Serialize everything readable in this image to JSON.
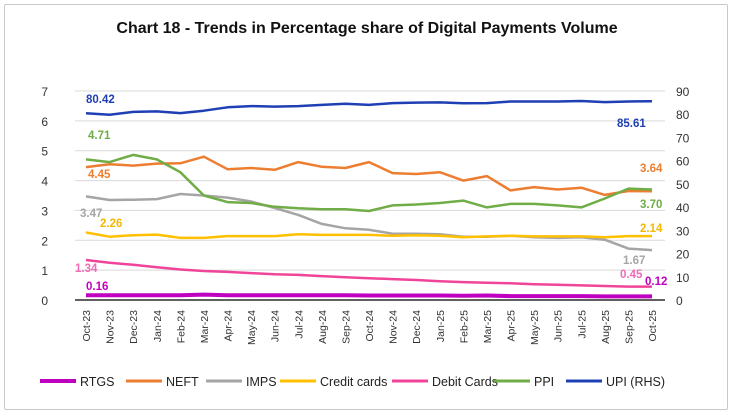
{
  "chart_data": {
    "type": "line",
    "title": "Chart 18 - Trends in Percentage share of Digital Payments Volume",
    "categories": [
      "Oct-23",
      "Nov-23",
      "Dec-23",
      "Jan-24",
      "Feb-24",
      "Mar-24",
      "Apr-24",
      "May-24",
      "Jun-24",
      "Jul-24",
      "Aug-24",
      "Sep-24",
      "Oct-24",
      "Nov-24",
      "Dec-24",
      "Jan-25",
      "Feb-25",
      "Mar-25",
      "Apr-25",
      "May-25",
      "Jun-25",
      "Jul-25",
      "Aug-25",
      "Sep-25",
      "Oct-25"
    ],
    "ylim": [
      0,
      7
    ],
    "yticks": [
      "0",
      "1",
      "2",
      "3",
      "4",
      "5",
      "6",
      "7"
    ],
    "y2lim": [
      0,
      90
    ],
    "y2ticks": [
      "0",
      "10",
      "20",
      "30",
      "40",
      "50",
      "60",
      "70",
      "80",
      "90"
    ],
    "grid": true,
    "legend": "bottom",
    "series": [
      {
        "name": "RTGS",
        "color": "#c000c0",
        "axis": "left",
        "values": [
          0.16,
          0.16,
          0.16,
          0.16,
          0.16,
          0.18,
          0.16,
          0.16,
          0.16,
          0.16,
          0.16,
          0.16,
          0.15,
          0.15,
          0.15,
          0.15,
          0.14,
          0.15,
          0.13,
          0.13,
          0.13,
          0.13,
          0.12,
          0.12,
          0.12
        ],
        "first_label": "0.16",
        "last_label": "0.12"
      },
      {
        "name": "NEFT",
        "color": "#ed7d31",
        "axis": "left",
        "values": [
          4.45,
          4.55,
          4.5,
          4.57,
          4.58,
          4.8,
          4.38,
          4.42,
          4.36,
          4.62,
          4.46,
          4.42,
          4.62,
          4.25,
          4.22,
          4.28,
          4.0,
          4.15,
          3.67,
          3.78,
          3.7,
          3.76,
          3.52,
          3.65,
          3.64
        ],
        "first_label": "4.45",
        "last_label": "3.64"
      },
      {
        "name": "IMPS",
        "color": "#a5a5a5",
        "axis": "left",
        "values": [
          3.47,
          3.35,
          3.36,
          3.38,
          3.55,
          3.5,
          3.43,
          3.3,
          3.08,
          2.85,
          2.55,
          2.4,
          2.35,
          2.22,
          2.22,
          2.2,
          2.12,
          2.12,
          2.15,
          2.1,
          2.08,
          2.1,
          2.02,
          1.72,
          1.67
        ],
        "first_label": "3.47",
        "last_label": "1.67"
      },
      {
        "name": "Credit cards",
        "color": "#ffc000",
        "axis": "left",
        "values": [
          2.26,
          2.12,
          2.17,
          2.19,
          2.08,
          2.08,
          2.14,
          2.14,
          2.14,
          2.2,
          2.18,
          2.18,
          2.18,
          2.15,
          2.17,
          2.15,
          2.1,
          2.13,
          2.15,
          2.13,
          2.13,
          2.13,
          2.1,
          2.14,
          2.14
        ],
        "first_label": "2.26",
        "last_label": "2.14"
      },
      {
        "name": "Debit Cards",
        "color": "#f0449a",
        "axis": "left",
        "values": [
          1.34,
          1.25,
          1.18,
          1.1,
          1.02,
          0.97,
          0.94,
          0.9,
          0.86,
          0.84,
          0.8,
          0.76,
          0.73,
          0.7,
          0.67,
          0.63,
          0.6,
          0.58,
          0.56,
          0.53,
          0.51,
          0.49,
          0.47,
          0.45,
          0.45
        ],
        "first_label": "1.34",
        "last_label": "0.45"
      },
      {
        "name": "PPI",
        "color": "#70ad47",
        "axis": "left",
        "values": [
          4.71,
          4.62,
          4.86,
          4.71,
          4.28,
          3.5,
          3.28,
          3.25,
          3.12,
          3.07,
          3.04,
          3.04,
          2.98,
          3.17,
          3.2,
          3.25,
          3.33,
          3.1,
          3.22,
          3.22,
          3.17,
          3.1,
          3.4,
          3.73,
          3.7
        ],
        "first_label": "4.71",
        "last_label": "3.70"
      },
      {
        "name": "UPI (RHS)",
        "color": "#1f3fb4",
        "axis": "right",
        "values": [
          80.42,
          79.8,
          81,
          81.2,
          80.5,
          81.5,
          83,
          83.5,
          83.3,
          83.5,
          84,
          84.5,
          84,
          84.8,
          85,
          85.1,
          84.7,
          84.8,
          85.5,
          85.5,
          85.5,
          85.7,
          85.2,
          85.5,
          85.61
        ],
        "first_label": "80.42",
        "last_label": "85.61"
      }
    ]
  }
}
